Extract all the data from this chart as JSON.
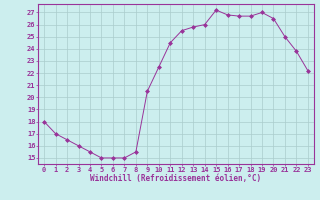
{
  "x": [
    0,
    1,
    2,
    3,
    4,
    5,
    6,
    7,
    8,
    9,
    10,
    11,
    12,
    13,
    14,
    15,
    16,
    17,
    18,
    19,
    20,
    21,
    22,
    23
  ],
  "y": [
    18,
    17,
    16.5,
    16,
    15.5,
    15,
    15,
    15,
    15.5,
    20.5,
    22.5,
    24.5,
    25.5,
    25.8,
    26,
    27.2,
    26.8,
    26.7,
    26.7,
    27,
    26.5,
    25,
    23.8,
    22.2
  ],
  "line_color": "#993399",
  "marker": "D",
  "marker_size": 2,
  "bg_color": "#cceeee",
  "grid_color": "#aacccc",
  "xlabel": "Windchill (Refroidissement éolien,°C)",
  "xlabel_color": "#993399",
  "xlabel_fontsize": 5.5,
  "tick_color": "#993399",
  "tick_fontsize": 5,
  "ylim": [
    14.5,
    27.7
  ],
  "yticks": [
    15,
    16,
    17,
    18,
    19,
    20,
    21,
    22,
    23,
    24,
    25,
    26,
    27
  ],
  "xlim": [
    -0.5,
    23.5
  ],
  "xticks": [
    0,
    1,
    2,
    3,
    4,
    5,
    6,
    7,
    8,
    9,
    10,
    11,
    12,
    13,
    14,
    15,
    16,
    17,
    18,
    19,
    20,
    21,
    22,
    23
  ]
}
